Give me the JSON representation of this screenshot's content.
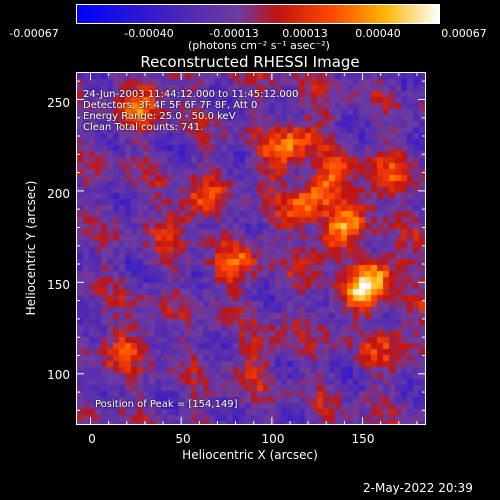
{
  "colorbar": {
    "tick_labels": [
      "-0.00067",
      "-0.00040",
      "-0.00013",
      "0.00013",
      "0.00040",
      "0.00067"
    ],
    "units": "(photons cm⁻² s⁻¹ asec⁻²)",
    "range": [
      -0.00067,
      0.00067
    ]
  },
  "title": "Reconstructed RHESSI Image",
  "overlay": {
    "line1": "24-Jun-2003 11:44:12.000 to 11:45:12.000",
    "line2": "Detectors: 3F 4F 5F 6F 7F 8F, Att 0",
    "line3": "Energy Range: 25.0 - 50.0 keV",
    "line4": "Clean    Total counts: 741.",
    "peak": "Position of Peak = [154,149]"
  },
  "axes": {
    "xlabel": "Heliocentric X (arcsec)",
    "ylabel": "Heliocentric Y (arcsec)",
    "xticks": [
      "0",
      "50",
      "100",
      "150"
    ],
    "yticks": [
      "250",
      "200",
      "150",
      "100"
    ]
  },
  "timestamp": "2-May-2022 20:39",
  "chart_data": {
    "type": "heatmap",
    "title": "Reconstructed RHESSI Image",
    "xlabel": "Heliocentric X (arcsec)",
    "ylabel": "Heliocentric Y (arcsec)",
    "xlim": [
      -8,
      185
    ],
    "ylim": [
      72,
      265
    ],
    "colormap_range": [
      -0.00067,
      0.00067
    ],
    "peak_position": [
      154,
      149
    ],
    "energy_range_keV": [
      25.0,
      50.0
    ],
    "total_counts": 741,
    "sources": [
      {
        "x": 154,
        "y": 149,
        "value": 0.00067
      },
      {
        "x": 125,
        "y": 200,
        "value": 0.00055
      },
      {
        "x": 110,
        "y": 225,
        "value": 0.00045
      },
      {
        "x": 135,
        "y": 175,
        "value": 0.00042
      },
      {
        "x": 55,
        "y": 190,
        "value": 0.00035
      },
      {
        "x": 80,
        "y": 160,
        "value": 0.0003
      },
      {
        "x": 30,
        "y": 250,
        "value": 0.00035
      },
      {
        "x": 160,
        "y": 205,
        "value": 0.0003
      },
      {
        "x": 170,
        "y": 120,
        "value": 0.00025
      },
      {
        "x": 20,
        "y": 115,
        "value": 0.00025
      },
      {
        "x": 95,
        "y": 110,
        "value": 0.0002
      }
    ]
  }
}
